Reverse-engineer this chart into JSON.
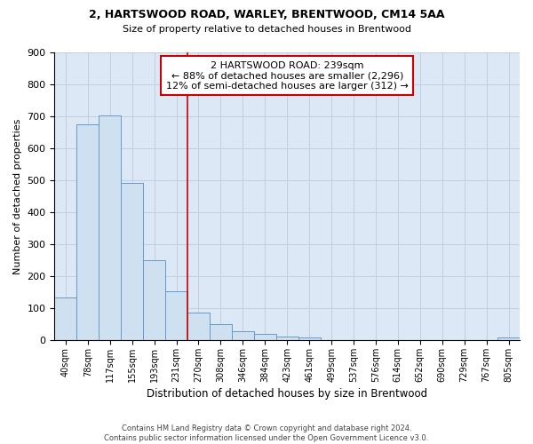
{
  "title1": "2, HARTSWOOD ROAD, WARLEY, BRENTWOOD, CM14 5AA",
  "title2": "Size of property relative to detached houses in Brentwood",
  "xlabel": "Distribution of detached houses by size in Brentwood",
  "ylabel": "Number of detached properties",
  "footer1": "Contains HM Land Registry data © Crown copyright and database right 2024.",
  "footer2": "Contains public sector information licensed under the Open Government Licence v3.0.",
  "bar_labels": [
    "40sqm",
    "78sqm",
    "117sqm",
    "155sqm",
    "193sqm",
    "231sqm",
    "270sqm",
    "308sqm",
    "346sqm",
    "384sqm",
    "423sqm",
    "461sqm",
    "499sqm",
    "537sqm",
    "576sqm",
    "614sqm",
    "652sqm",
    "690sqm",
    "729sqm",
    "767sqm",
    "805sqm"
  ],
  "bar_values": [
    133,
    675,
    704,
    492,
    250,
    153,
    85,
    50,
    28,
    20,
    12,
    8,
    0,
    0,
    0,
    0,
    0,
    0,
    0,
    0,
    8
  ],
  "bar_color": "#cfe0f0",
  "bar_edge_color": "#6699cc",
  "grid_color": "#bbccdd",
  "background_color": "#dce8f5",
  "annotation_label": "2 HARTSWOOD ROAD: 239sqm",
  "annotation_line1": "← 88% of detached houses are smaller (2,296)",
  "annotation_line2": "12% of semi-detached houses are larger (312) →",
  "vline_color": "#cc0000",
  "vline_x": 5.5,
  "box_edge_color": "#cc0000",
  "ylim": [
    0,
    900
  ],
  "yticks": [
    0,
    100,
    200,
    300,
    400,
    500,
    600,
    700,
    800,
    900
  ]
}
